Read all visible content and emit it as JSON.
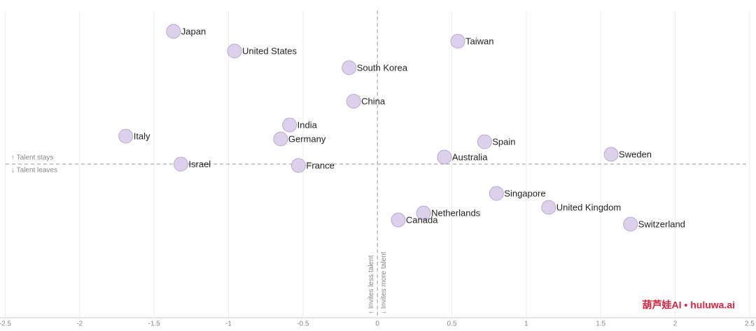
{
  "chart_data": {
    "type": "scatter",
    "points": [
      {
        "label": "Japan",
        "x": -1.37,
        "y": 0.95
      },
      {
        "label": "United States",
        "x": -0.96,
        "y": 0.81
      },
      {
        "label": "Taiwan",
        "x": 0.54,
        "y": 0.88
      },
      {
        "label": "South Korea",
        "x": -0.19,
        "y": 0.69
      },
      {
        "label": "China",
        "x": -0.16,
        "y": 0.45
      },
      {
        "label": "India",
        "x": -0.59,
        "y": 0.28
      },
      {
        "label": "Italy",
        "x": -1.69,
        "y": 0.2
      },
      {
        "label": "Germany",
        "x": -0.65,
        "y": 0.18
      },
      {
        "label": "Spain",
        "x": 0.72,
        "y": 0.16
      },
      {
        "label": "Australia",
        "x": 0.45,
        "y": 0.05
      },
      {
        "label": "Sweden",
        "x": 1.57,
        "y": 0.07
      },
      {
        "label": "Israel",
        "x": -1.32,
        "y": 0.0
      },
      {
        "label": "France",
        "x": -0.53,
        "y": -0.01
      },
      {
        "label": "Singapore",
        "x": 0.8,
        "y": -0.21
      },
      {
        "label": "United Kingdom",
        "x": 1.15,
        "y": -0.31
      },
      {
        "label": "Netherlands",
        "x": 0.31,
        "y": -0.35
      },
      {
        "label": "Canada",
        "x": 0.14,
        "y": -0.4
      },
      {
        "label": "Switzerland",
        "x": 1.7,
        "y": -0.43
      }
    ],
    "color": "#dcd0ea",
    "edge_color": "#bba8d4",
    "xlim": [
      -2.535,
      2.543
    ],
    "ylim": [
      -1.1,
      1.1
    ],
    "xticks": [
      -2.5,
      -2,
      -1.5,
      -1,
      -0.5,
      0,
      0.5,
      1,
      1.5,
      2,
      2.5
    ],
    "grid": true,
    "reference_lines": {
      "x": 0,
      "y": 0
    },
    "annotations": {
      "y_up": "↑ Talent stays",
      "y_down": "↓ Talent leaves",
      "x_left": "↑ Invites less talent",
      "x_right": "↓ Invites more talent"
    },
    "watermark": "葫芦娃AI  •  huluwa.ai"
  }
}
